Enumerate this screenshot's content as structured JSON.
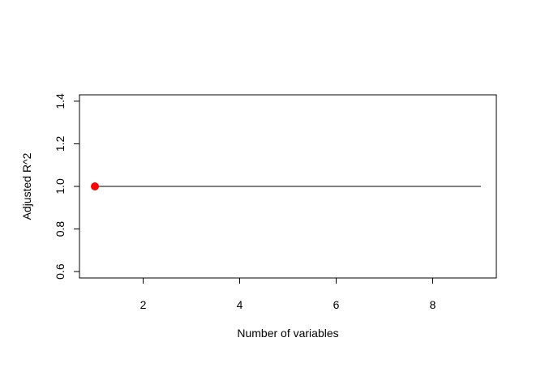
{
  "chart_data": {
    "type": "line",
    "title": "",
    "xlabel": "Number of variables",
    "ylabel": "Adjusted R^2",
    "xlim": [
      0.68,
      9.32
    ],
    "ylim": [
      0.57,
      1.43
    ],
    "x_ticks": [
      2,
      4,
      6,
      8
    ],
    "x_tick_labels": [
      "2",
      "4",
      "6",
      "8"
    ],
    "y_ticks": [
      0.6,
      0.8,
      1.0,
      1.2,
      1.4
    ],
    "y_tick_labels": [
      "0.6",
      "0.8",
      "1.0",
      "1.2",
      "1.4"
    ],
    "grid": false,
    "legend": "none",
    "series": [
      {
        "x": [
          1,
          2,
          3,
          4,
          5,
          6,
          7,
          8,
          9
        ],
        "values": [
          1,
          1,
          1,
          1,
          1,
          1,
          1,
          1,
          1
        ],
        "color": "#000000"
      }
    ],
    "highlight_point": {
      "x": 1,
      "y": 1,
      "color": "#ff0000"
    }
  }
}
